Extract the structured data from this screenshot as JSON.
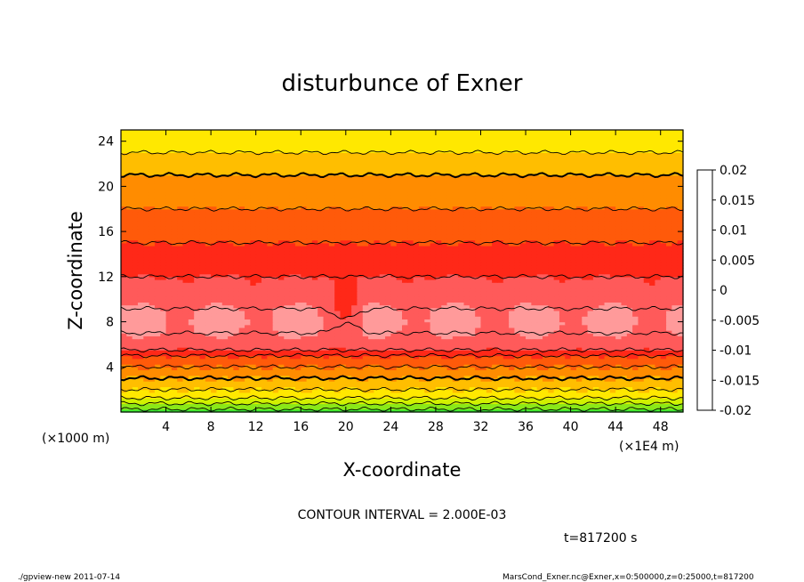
{
  "chart_data": {
    "type": "heatmap",
    "title": "disturbunce of Exner",
    "xlabel": "X-coordinate",
    "ylabel": "Z-coordinate",
    "x_unit_label": "(×1E4 m)",
    "y_unit_label": "(×1000 m)",
    "x_ticks": [
      4,
      8,
      12,
      16,
      20,
      24,
      28,
      32,
      36,
      40,
      44,
      48
    ],
    "y_ticks": [
      4,
      8,
      12,
      16,
      20,
      24
    ],
    "xlim": [
      0,
      50
    ],
    "ylim": [
      0,
      25
    ],
    "colorbar": {
      "labels": [
        "0.02",
        "0.015",
        "0.01",
        "0.005",
        "0",
        "-0.005",
        "-0.01",
        "-0.015",
        "-0.02"
      ],
      "range": [
        -0.02,
        0.02
      ],
      "levels": [
        {
          "lo": -0.02,
          "color": "#6a1b9a"
        },
        {
          "lo": -0.018,
          "color": "#3c0fa3"
        },
        {
          "lo": -0.016,
          "color": "#1010b0"
        },
        {
          "lo": -0.014,
          "color": "#0a2ed6"
        },
        {
          "lo": -0.012,
          "color": "#0b5af0"
        },
        {
          "lo": -0.01,
          "color": "#1088f0"
        },
        {
          "lo": -0.008,
          "color": "#10b2f0"
        },
        {
          "lo": -0.006,
          "color": "#10d6e8"
        },
        {
          "lo": -0.004,
          "color": "#10e0b0"
        },
        {
          "lo": -0.002,
          "color": "#16d860"
        },
        {
          "lo": 0.0,
          "color": "#3ce830"
        },
        {
          "lo": 0.002,
          "color": "#8ae818"
        },
        {
          "lo": 0.004,
          "color": "#d2f000"
        },
        {
          "lo": 0.006,
          "color": "#ffe800"
        },
        {
          "lo": 0.008,
          "color": "#ffbe00"
        },
        {
          "lo": 0.01,
          "color": "#ff8c00"
        },
        {
          "lo": 0.012,
          "color": "#ff5a0a"
        },
        {
          "lo": 0.014,
          "color": "#ff2818"
        },
        {
          "lo": 0.016,
          "color": "#ff5a5a"
        },
        {
          "lo": 0.018,
          "color": "#ff9a9a"
        }
      ]
    },
    "field_profile": {
      "z": [
        0,
        0.5,
        1,
        1.5,
        2,
        2.5,
        3,
        3.5,
        4,
        4.5,
        5,
        5.5,
        6,
        7,
        8,
        9,
        10,
        11,
        12,
        13,
        14,
        15,
        16,
        17,
        18,
        19,
        20,
        21,
        22,
        23,
        24,
        25
      ],
      "value": [
        0.001,
        0.003,
        0.005,
        0.007,
        0.008,
        0.009,
        0.01,
        0.011,
        0.012,
        0.013,
        0.014,
        0.016,
        0.017,
        0.018,
        0.0185,
        0.0182,
        0.017,
        0.0165,
        0.016,
        0.015,
        0.0145,
        0.014,
        0.0135,
        0.013,
        0.012,
        0.0115,
        0.011,
        0.01,
        0.009,
        0.008,
        0.007,
        0.0065
      ]
    },
    "contour_interval": "2.000E-03"
  },
  "annotations": {
    "contour_interval_text": "CONTOUR INTERVAL = 2.000E-03",
    "time_text": "t=817200 s",
    "footer_left": "./gpview-new  2011-07-14",
    "footer_right": "MarsCond_Exner.nc@Exner,x=0:500000,z=0:25000,t=817200"
  }
}
